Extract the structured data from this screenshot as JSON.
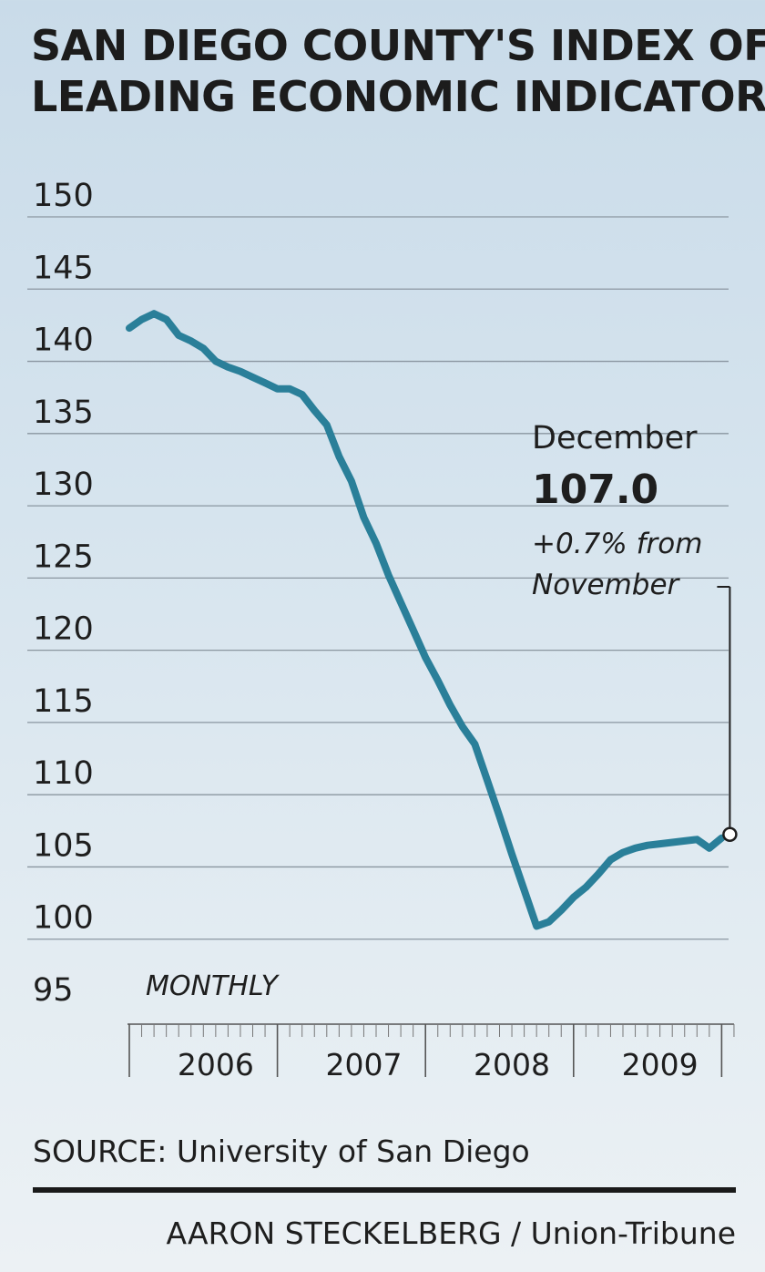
{
  "header": {
    "title_line1": "SAN DIEGO COUNTY'S INDEX OF",
    "title_line2": "LEADING ECONOMIC INDICATORS"
  },
  "footer": {
    "source": "SOURCE: University of San Diego",
    "credit": "AARON STECKELBERG / Union-Tribune"
  },
  "colors": {
    "line": "#2a7f99",
    "grid": "#8a96a0",
    "text": "#1e1e1e"
  },
  "chart_data": {
    "type": "line",
    "title": "SAN DIEGO COUNTY'S INDEX OF LEADING ECONOMIC INDICATORS",
    "frequency_label": "MONTHLY",
    "ylim": [
      95,
      150
    ],
    "y_ticks": [
      150,
      145,
      140,
      135,
      130,
      125,
      120,
      115,
      110,
      105,
      100,
      95
    ],
    "x_tick_labels": [
      "2006",
      "2007",
      "2008",
      "2009"
    ],
    "grid": true,
    "series": [
      {
        "x": [
          "2005-12",
          "2006-01",
          "2006-02",
          "2006-03",
          "2006-04",
          "2006-05",
          "2006-06",
          "2006-07",
          "2006-08",
          "2006-09",
          "2006-10",
          "2006-11",
          "2006-12",
          "2007-01",
          "2007-02",
          "2007-03",
          "2007-04",
          "2007-05",
          "2007-06",
          "2007-07",
          "2007-08",
          "2007-09",
          "2007-10",
          "2007-11",
          "2007-12",
          "2008-01",
          "2008-02",
          "2008-03",
          "2008-04",
          "2008-05",
          "2008-06",
          "2008-07",
          "2008-08",
          "2008-09",
          "2008-10",
          "2008-11",
          "2008-12",
          "2009-01",
          "2009-02",
          "2009-03",
          "2009-04",
          "2009-05",
          "2009-06",
          "2009-07",
          "2009-08",
          "2009-09",
          "2009-10",
          "2009-11",
          "2009-12"
        ],
        "values": [
          142.3,
          142.9,
          143.3,
          142.9,
          141.8,
          141.4,
          140.9,
          140.0,
          139.6,
          139.3,
          138.9,
          138.5,
          138.1,
          138.1,
          137.7,
          136.6,
          135.6,
          133.4,
          131.7,
          129.2,
          127.4,
          125.2,
          123.3,
          121.4,
          119.5,
          117.9,
          116.2,
          114.7,
          113.5,
          111.0,
          108.5,
          105.9,
          103.4,
          100.9,
          101.2,
          102.0,
          102.9,
          103.6,
          104.5,
          105.5,
          106.0,
          106.3,
          106.5,
          106.6,
          106.7,
          106.8,
          106.9,
          106.3,
          107.0
        ]
      }
    ],
    "annotation": {
      "month": "December",
      "value": "107.0",
      "change_line1": "+0.7% from",
      "change_line2": "November"
    }
  }
}
